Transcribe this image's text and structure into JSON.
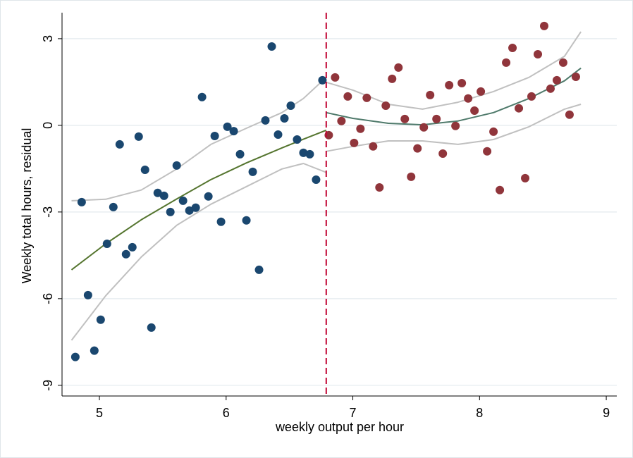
{
  "chart_data": {
    "type": "scatter",
    "x_label": "weekly output per hour",
    "y_label": "Weekly total hours, residual",
    "xlim": [
      4.705,
      9.083
    ],
    "ylim": [
      -9.37,
      3.9
    ],
    "xticks": [
      5,
      6,
      7,
      8,
      9
    ],
    "yticks": [
      3,
      0,
      -3,
      -6,
      -9
    ],
    "grid": true,
    "cutoff": {
      "x": 6.79,
      "color": "#c10534",
      "dashed": true
    },
    "series": [
      {
        "mode": "markers",
        "color": "#1a476f",
        "x": [
          4.81,
          4.86,
          4.91,
          4.96,
          5.01,
          5.06,
          5.11,
          5.16,
          5.21,
          5.26,
          5.31,
          5.36,
          5.41,
          5.46,
          5.51,
          5.56,
          5.61,
          5.66,
          5.71,
          5.76,
          5.81,
          5.86,
          5.91,
          5.96,
          6.01,
          6.06,
          6.11,
          6.16,
          6.21,
          6.26,
          6.31,
          6.36,
          6.41,
          6.46,
          6.51,
          6.56,
          6.61,
          6.66,
          6.71,
          6.76
        ],
        "values": [
          -8.02,
          -2.66,
          -5.88,
          -7.8,
          -6.73,
          -4.1,
          -2.83,
          -0.66,
          -4.46,
          -4.22,
          -0.39,
          -1.54,
          -7.0,
          -2.34,
          -2.44,
          -3.0,
          -1.39,
          -2.61,
          -2.95,
          -2.85,
          0.98,
          -2.46,
          -0.37,
          -3.34,
          -0.05,
          -0.2,
          -1.0,
          -3.29,
          -1.61,
          -5.0,
          0.17,
          2.73,
          -0.32,
          0.24,
          0.68,
          -0.49,
          -0.95,
          -1.0,
          -1.88,
          1.56
        ]
      },
      {
        "mode": "markers",
        "color": "#90353b",
        "x": [
          6.81,
          6.86,
          6.91,
          6.96,
          7.01,
          7.06,
          7.11,
          7.16,
          7.21,
          7.26,
          7.31,
          7.36,
          7.41,
          7.46,
          7.51,
          7.56,
          7.61,
          7.66,
          7.71,
          7.76,
          7.81,
          7.86,
          7.91,
          7.96,
          8.01,
          8.06,
          8.11,
          8.16,
          8.21,
          8.26,
          8.31,
          8.36,
          8.41,
          8.46,
          8.51,
          8.56,
          8.61,
          8.66,
          8.71,
          8.76
        ],
        "values": [
          -0.34,
          1.66,
          0.15,
          1.0,
          -0.61,
          -0.12,
          0.95,
          -0.73,
          -2.15,
          0.68,
          1.61,
          2.0,
          0.22,
          -1.78,
          -0.8,
          -0.07,
          1.05,
          0.22,
          -0.98,
          1.39,
          -0.02,
          1.46,
          0.93,
          0.51,
          1.17,
          -0.9,
          -0.22,
          -2.24,
          2.17,
          2.68,
          0.59,
          -1.83,
          1.0,
          2.46,
          3.44,
          1.27,
          1.56,
          2.17,
          0.37,
          1.68
        ]
      },
      {
        "mode": "line",
        "color": "#c0c0c0",
        "x": [
          4.78,
          5.05,
          5.33,
          5.61,
          5.88,
          6.16,
          6.44,
          6.61,
          6.79
        ],
        "values": [
          -2.61,
          -2.56,
          -2.24,
          -1.51,
          -0.66,
          -0.1,
          0.44,
          0.93,
          1.66
        ]
      },
      {
        "mode": "line",
        "color": "#c0c0c0",
        "x": [
          4.78,
          5.05,
          5.33,
          5.61,
          5.88,
          6.16,
          6.44,
          6.61,
          6.79
        ],
        "values": [
          -7.44,
          -5.9,
          -4.56,
          -3.46,
          -2.73,
          -2.12,
          -1.51,
          -1.32,
          -1.63
        ]
      },
      {
        "mode": "line",
        "color": "#55752f",
        "x": [
          4.78,
          5.05,
          5.33,
          5.61,
          5.88,
          6.16,
          6.44,
          6.61,
          6.79
        ],
        "values": [
          -5.0,
          -4.1,
          -3.27,
          -2.55,
          -1.88,
          -1.3,
          -0.78,
          -0.48,
          -0.17
        ]
      },
      {
        "mode": "line",
        "color": "#c0c0c0",
        "x": [
          6.79,
          7.0,
          7.28,
          7.55,
          7.83,
          8.11,
          8.39,
          8.67,
          8.8
        ],
        "values": [
          1.49,
          1.22,
          0.73,
          0.56,
          0.8,
          1.17,
          1.66,
          2.39,
          3.24
        ]
      },
      {
        "mode": "line",
        "color": "#c0c0c0",
        "x": [
          6.79,
          7.0,
          7.28,
          7.55,
          7.83,
          8.11,
          8.39,
          8.67,
          8.8
        ],
        "values": [
          -0.9,
          -0.73,
          -0.54,
          -0.54,
          -0.66,
          -0.49,
          -0.05,
          0.56,
          0.73
        ]
      },
      {
        "mode": "line",
        "color": "#4f7a6b",
        "x": [
          6.79,
          7.0,
          7.28,
          7.55,
          7.83,
          8.11,
          8.39,
          8.67,
          8.8
        ],
        "values": [
          0.44,
          0.24,
          0.07,
          0.02,
          0.15,
          0.44,
          0.93,
          1.54,
          1.98
        ]
      }
    ]
  }
}
